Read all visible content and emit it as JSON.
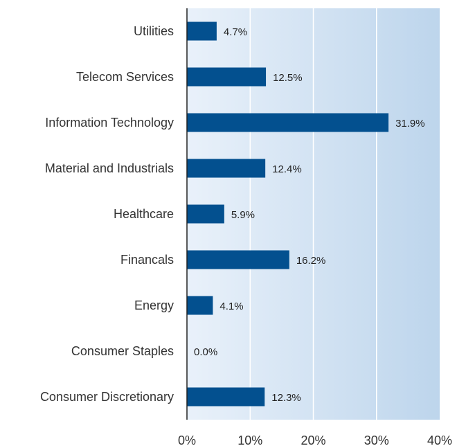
{
  "chart_data": {
    "type": "bar",
    "orientation": "horizontal",
    "categories": [
      "Utilities",
      "Telecom Services",
      "Information Technology",
      "Material and Industrials",
      "Healthcare",
      "Financals",
      "Energy",
      "Consumer Staples",
      "Consumer Discretionary"
    ],
    "values": [
      4.7,
      12.5,
      31.9,
      12.4,
      5.9,
      16.2,
      4.1,
      0.0,
      12.3
    ],
    "value_labels": [
      "4.7%",
      "12.5%",
      "31.9%",
      "12.4%",
      "5.9%",
      "16.2%",
      "4.1%",
      "0.0%",
      "12.3%"
    ],
    "x_ticks": [
      "0%",
      "10%",
      "20%",
      "30%",
      "40%"
    ],
    "xlim": [
      0,
      40
    ],
    "grid": true,
    "colors": {
      "bar": "#03508f",
      "background_light": "#e9f1fa",
      "background_dark": "#bdd5ec",
      "gridline": "#ffffff",
      "axis": "#222222"
    }
  }
}
